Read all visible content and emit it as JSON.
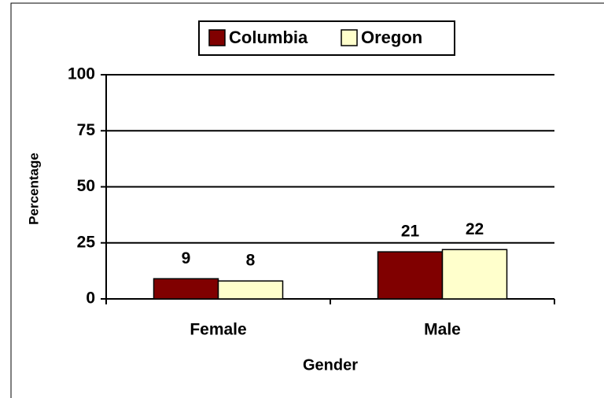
{
  "chart_data": {
    "type": "bar",
    "x_label": "Gender",
    "y_label": "Percentage",
    "categories": [
      "Female",
      "Male"
    ],
    "series": [
      {
        "name": "Columbia",
        "color": "#800000",
        "values": [
          9,
          21
        ]
      },
      {
        "name": "Oregon",
        "color": "#ffffcc",
        "values": [
          8,
          22
        ]
      }
    ],
    "ylim": [
      0,
      100
    ],
    "yticks": [
      0,
      25,
      50,
      75,
      100
    ],
    "grid": true,
    "legend": "top"
  }
}
